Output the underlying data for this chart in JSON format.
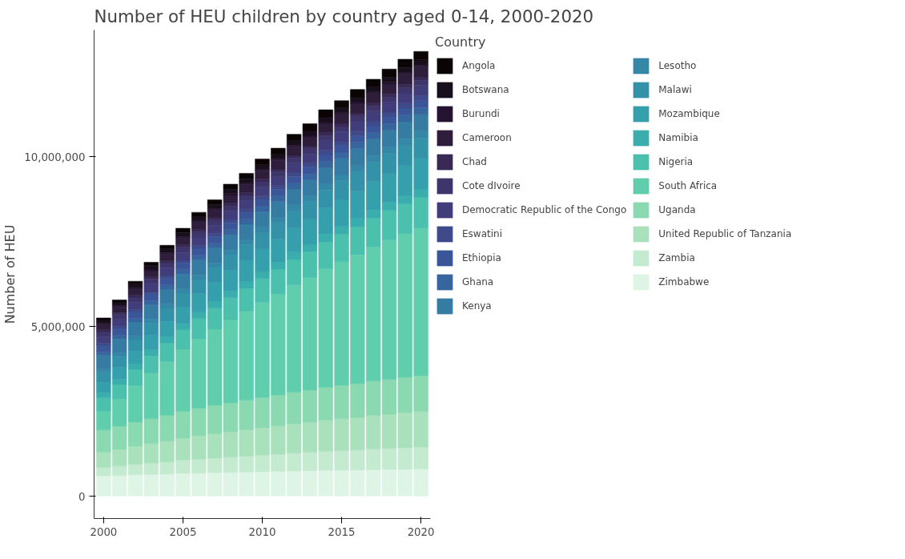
{
  "chart_data": {
    "type": "bar",
    "stacked": true,
    "title": "Number of HEU children by country aged 0-14, 2000-2020",
    "ylabel": "Number of HEU",
    "legend_title": "Country",
    "legend": "right",
    "grid": false,
    "x": [
      2000,
      2001,
      2002,
      2003,
      2004,
      2005,
      2006,
      2007,
      2008,
      2009,
      2010,
      2011,
      2012,
      2013,
      2014,
      2015,
      2016,
      2017,
      2018,
      2019,
      2020
    ],
    "xlim": [
      1999.4,
      2020.6
    ],
    "xticks": [
      2000,
      2005,
      2010,
      2015,
      2020
    ],
    "ylim": [
      -660000,
      13730000
    ],
    "yticks": [
      0,
      {
        "value": 5000000,
        "label": "5,000,000"
      },
      {
        "value": 10000000,
        "label": "10,000,000"
      }
    ],
    "series": [
      {
        "name": "Zimbabwe",
        "color": "#def5e5",
        "values": [
          600000,
          610000,
          630000,
          640000,
          650000,
          670000,
          680000,
          690000,
          700000,
          710000,
          720000,
          730000,
          740000,
          750000,
          760000,
          760000,
          770000,
          780000,
          790000,
          790000,
          800000
        ]
      },
      {
        "name": "Zambia",
        "color": "#c4ead0",
        "values": [
          250000,
          280000,
          310000,
          330000,
          360000,
          390000,
          410000,
          430000,
          450000,
          470000,
          490000,
          510000,
          530000,
          540000,
          560000,
          580000,
          590000,
          610000,
          620000,
          640000,
          650000
        ]
      },
      {
        "name": "United Republic of Tanzania",
        "color": "#a8e1bc",
        "values": [
          450000,
          490000,
          530000,
          580000,
          610000,
          650000,
          690000,
          720000,
          750000,
          780000,
          810000,
          830000,
          860000,
          890000,
          920000,
          940000,
          960000,
          990000,
          1010000,
          1030000,
          1050000
        ]
      },
      {
        "name": "Uganda",
        "color": "#8ad9b1",
        "values": [
          650000,
          680000,
          710000,
          730000,
          760000,
          790000,
          810000,
          830000,
          850000,
          870000,
          890000,
          910000,
          930000,
          940000,
          960000,
          980000,
          990000,
          1010000,
          1020000,
          1040000,
          1050000
        ]
      },
      {
        "name": "South Africa",
        "color": "#60ceac",
        "values": [
          550000,
          800000,
          1080000,
          1350000,
          1590000,
          1830000,
          2040000,
          2250000,
          2450000,
          2620000,
          2800000,
          2980000,
          3170000,
          3320000,
          3500000,
          3650000,
          3800000,
          3950000,
          4110000,
          4230000,
          4350000
        ]
      },
      {
        "name": "Nigeria",
        "color": "#4ac0ad",
        "values": [
          400000,
          430000,
          470000,
          510000,
          540000,
          570000,
          600000,
          620000,
          650000,
          670000,
          700000,
          720000,
          740000,
          760000,
          790000,
          810000,
          830000,
          850000,
          870000,
          880000,
          900000
        ]
      },
      {
        "name": "Namibia",
        "color": "#3aaead",
        "values": [
          150000,
          160000,
          160000,
          170000,
          180000,
          180000,
          190000,
          190000,
          200000,
          200000,
          210000,
          210000,
          220000,
          220000,
          230000,
          230000,
          240000,
          240000,
          240000,
          250000,
          250000
        ]
      },
      {
        "name": "Mozambique",
        "color": "#35a0ab",
        "values": [
          300000,
          340000,
          380000,
          430000,
          460000,
          500000,
          540000,
          570000,
          600000,
          630000,
          660000,
          680000,
          710000,
          740000,
          770000,
          790000,
          810000,
          840000,
          860000,
          880000,
          900000
        ]
      },
      {
        "name": "Malawi",
        "color": "#3492a8",
        "values": [
          300000,
          320000,
          340000,
          360000,
          380000,
          400000,
          420000,
          430000,
          450000,
          460000,
          480000,
          490000,
          510000,
          520000,
          530000,
          550000,
          560000,
          570000,
          580000,
          590000,
          600000
        ]
      },
      {
        "name": "Lesotho",
        "color": "#3487a6",
        "values": [
          100000,
          110000,
          110000,
          120000,
          130000,
          130000,
          140000,
          140000,
          150000,
          150000,
          160000,
          160000,
          170000,
          170000,
          180000,
          180000,
          190000,
          190000,
          190000,
          200000,
          200000
        ]
      },
      {
        "name": "Kenya",
        "color": "#357ba2",
        "values": [
          400000,
          410000,
          410000,
          420000,
          430000,
          430000,
          440000,
          440000,
          450000,
          450000,
          460000,
          460000,
          470000,
          470000,
          480000,
          480000,
          490000,
          490000,
          490000,
          500000,
          500000
        ]
      },
      {
        "name": "Ghana",
        "color": "#37659e",
        "values": [
          100000,
          110000,
          110000,
          120000,
          130000,
          130000,
          140000,
          140000,
          150000,
          150000,
          160000,
          160000,
          170000,
          170000,
          180000,
          180000,
          190000,
          190000,
          190000,
          200000,
          200000
        ]
      },
      {
        "name": "Ethiopia",
        "color": "#3b5698",
        "values": [
          200000,
          200000,
          200000,
          200000,
          200000,
          200000,
          200000,
          200000,
          200000,
          200000,
          200000,
          200000,
          200000,
          200000,
          200000,
          200000,
          200000,
          200000,
          200000,
          200000,
          200000
        ]
      },
      {
        "name": "Eswatini",
        "color": "#3e4a89",
        "values": [
          50000,
          60000,
          60000,
          70000,
          80000,
          80000,
          90000,
          90000,
          100000,
          100000,
          110000,
          110000,
          120000,
          120000,
          130000,
          130000,
          140000,
          140000,
          140000,
          150000,
          150000
        ]
      },
      {
        "name": "Democratic Republic of the Congo",
        "color": "#413d7b",
        "values": [
          200000,
          210000,
          210000,
          220000,
          230000,
          230000,
          240000,
          240000,
          250000,
          250000,
          260000,
          260000,
          270000,
          270000,
          280000,
          280000,
          290000,
          290000,
          290000,
          300000,
          300000
        ]
      },
      {
        "name": "Cote dIvoire",
        "color": "#3e356b",
        "values": [
          150000,
          150000,
          150000,
          150000,
          150000,
          150000,
          150000,
          150000,
          150000,
          150000,
          150000,
          150000,
          150000,
          150000,
          150000,
          150000,
          150000,
          150000,
          150000,
          150000,
          150000
        ]
      },
      {
        "name": "Chad",
        "color": "#382a54",
        "values": [
          50000,
          50000,
          60000,
          60000,
          60000,
          70000,
          70000,
          70000,
          80000,
          80000,
          80000,
          80000,
          80000,
          90000,
          90000,
          90000,
          90000,
          90000,
          100000,
          100000,
          100000
        ]
      },
      {
        "name": "Cameroon",
        "color": "#2e1e3c",
        "values": [
          150000,
          160000,
          170000,
          180000,
          190000,
          200000,
          210000,
          220000,
          230000,
          230000,
          240000,
          250000,
          250000,
          260000,
          270000,
          270000,
          280000,
          280000,
          290000,
          300000,
          300000
        ]
      },
      {
        "name": "Burundi",
        "color": "#241432",
        "values": [
          50000,
          50000,
          50000,
          50000,
          50000,
          50000,
          50000,
          50000,
          50000,
          50000,
          50000,
          50000,
          50000,
          50000,
          50000,
          50000,
          50000,
          50000,
          50000,
          50000,
          50000
        ]
      },
      {
        "name": "Botswana",
        "color": "#180f1c",
        "values": [
          100000,
          100000,
          110000,
          110000,
          110000,
          120000,
          120000,
          120000,
          130000,
          130000,
          130000,
          130000,
          130000,
          140000,
          140000,
          140000,
          140000,
          140000,
          150000,
          150000,
          150000
        ]
      },
      {
        "name": "Angola",
        "color": "#0b0405",
        "values": [
          50000,
          60000,
          80000,
          90000,
          100000,
          120000,
          130000,
          140000,
          150000,
          160000,
          170000,
          180000,
          190000,
          200000,
          210000,
          210000,
          220000,
          230000,
          240000,
          240000,
          250000
        ]
      }
    ]
  }
}
